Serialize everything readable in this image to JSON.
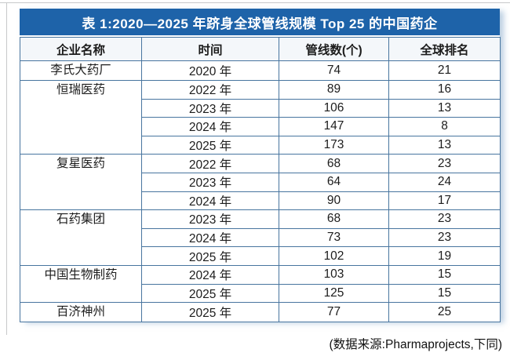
{
  "page": {
    "title": "表 1:2020—2025 年跻身全球管线规模 Top 25 的中国药企",
    "source_note": "(数据来源:Pharmaprojects,下同)"
  },
  "colors": {
    "title_bar_bg": "#1e63a9",
    "title_text": "#ffffff",
    "border": "#48759f",
    "header_bg": "#f4f7fa",
    "text": "#1c1c1c"
  },
  "table": {
    "columns": [
      "企业名称",
      "时间",
      "管线数(个)",
      "全球排名"
    ],
    "groups": [
      {
        "company": "李氏大药厂",
        "rows": [
          {
            "year": "2020 年",
            "pipelines": "74",
            "rank": "21"
          }
        ]
      },
      {
        "company": "恒瑞医药",
        "rows": [
          {
            "year": "2022 年",
            "pipelines": "89",
            "rank": "16"
          },
          {
            "year": "2023 年",
            "pipelines": "106",
            "rank": "13"
          },
          {
            "year": "2024 年",
            "pipelines": "147",
            "rank": "8"
          },
          {
            "year": "2025 年",
            "pipelines": "173",
            "rank": "13"
          }
        ]
      },
      {
        "company": "复星医药",
        "rows": [
          {
            "year": "2022 年",
            "pipelines": "68",
            "rank": "23"
          },
          {
            "year": "2023 年",
            "pipelines": "64",
            "rank": "24"
          },
          {
            "year": "2024 年",
            "pipelines": "90",
            "rank": "17"
          }
        ]
      },
      {
        "company": "石药集团",
        "rows": [
          {
            "year": "2023 年",
            "pipelines": "68",
            "rank": "23"
          },
          {
            "year": "2024 年",
            "pipelines": "73",
            "rank": "23"
          },
          {
            "year": "2025 年",
            "pipelines": "102",
            "rank": "19"
          }
        ]
      },
      {
        "company": "中国生物制药",
        "rows": [
          {
            "year": "2024 年",
            "pipelines": "103",
            "rank": "15"
          },
          {
            "year": "2025 年",
            "pipelines": "125",
            "rank": "15"
          }
        ]
      },
      {
        "company": "百济神州",
        "rows": [
          {
            "year": "2025 年",
            "pipelines": "77",
            "rank": "25"
          }
        ]
      }
    ]
  }
}
